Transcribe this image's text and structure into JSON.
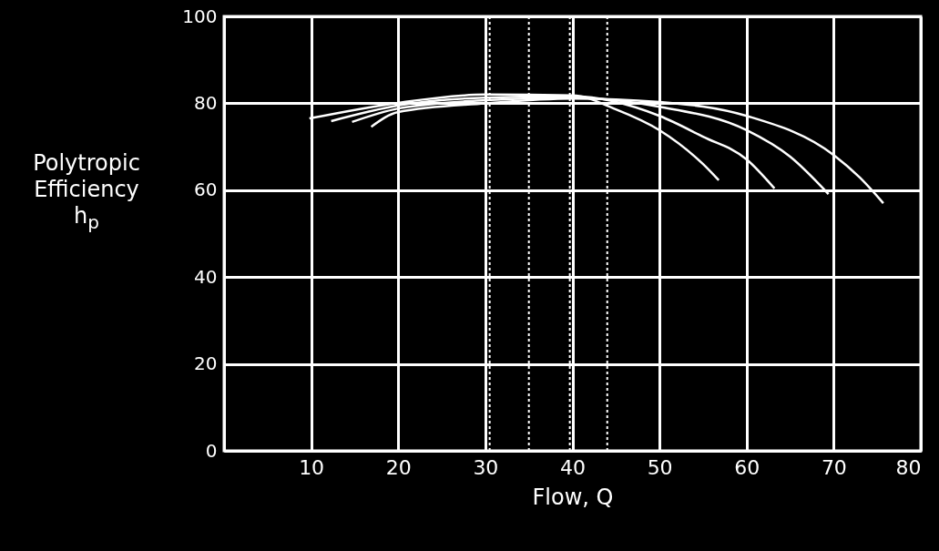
{
  "chart_data": {
    "type": "line",
    "xlabel": "Flow, Q",
    "ylabel": "Polytropic\nEfficiency\nh$_{p}$",
    "xlim": [
      0,
      80
    ],
    "ylim": [
      0,
      100
    ],
    "xticks": [
      10,
      20,
      30,
      40,
      50,
      60,
      70,
      80
    ],
    "yticks": [
      0,
      20,
      40,
      60,
      80,
      100
    ],
    "grid": true,
    "line_style": "solid",
    "series": [
      {
        "color": "#ffffff",
        "x": [
          9.8,
          20,
          30,
          40,
          45,
          50,
          55,
          56.8
        ],
        "values": [
          76.5,
          80.1,
          82,
          81.8,
          78.6,
          73.8,
          66,
          62.3
        ]
      },
      {
        "color": "#ffffff",
        "x": [
          12.3,
          20,
          30,
          40,
          50,
          55,
          60,
          63.2
        ],
        "values": [
          75.9,
          79.5,
          81.3,
          81.6,
          77.1,
          72.3,
          67.1,
          60.4
        ]
      },
      {
        "color": "#ffffff",
        "x": [
          14.7,
          20,
          30,
          40,
          50,
          60,
          65,
          69.4
        ],
        "values": [
          75.7,
          78.8,
          80.7,
          81.3,
          79.2,
          73.8,
          67.7,
          59.1
        ]
      },
      {
        "color": "#ffffff",
        "x": [
          16.9,
          20,
          30,
          40,
          50,
          60,
          70,
          73,
          75.7
        ],
        "values": [
          74.6,
          78,
          80,
          81.1,
          80.3,
          77.1,
          68.1,
          62.9,
          57
        ]
      }
    ],
    "ref_lines": [
      {
        "axis": "x",
        "value": 30.5,
        "line_style": "dotted",
        "color": "#ffffff"
      },
      {
        "axis": "x",
        "value": 35,
        "line_style": "dotted",
        "color": "#ffffff"
      },
      {
        "axis": "x",
        "value": 39.7,
        "line_style": "dotted",
        "color": "#ffffff"
      },
      {
        "axis": "x",
        "value": 44,
        "line_style": "dotted",
        "color": "#ffffff"
      }
    ]
  }
}
